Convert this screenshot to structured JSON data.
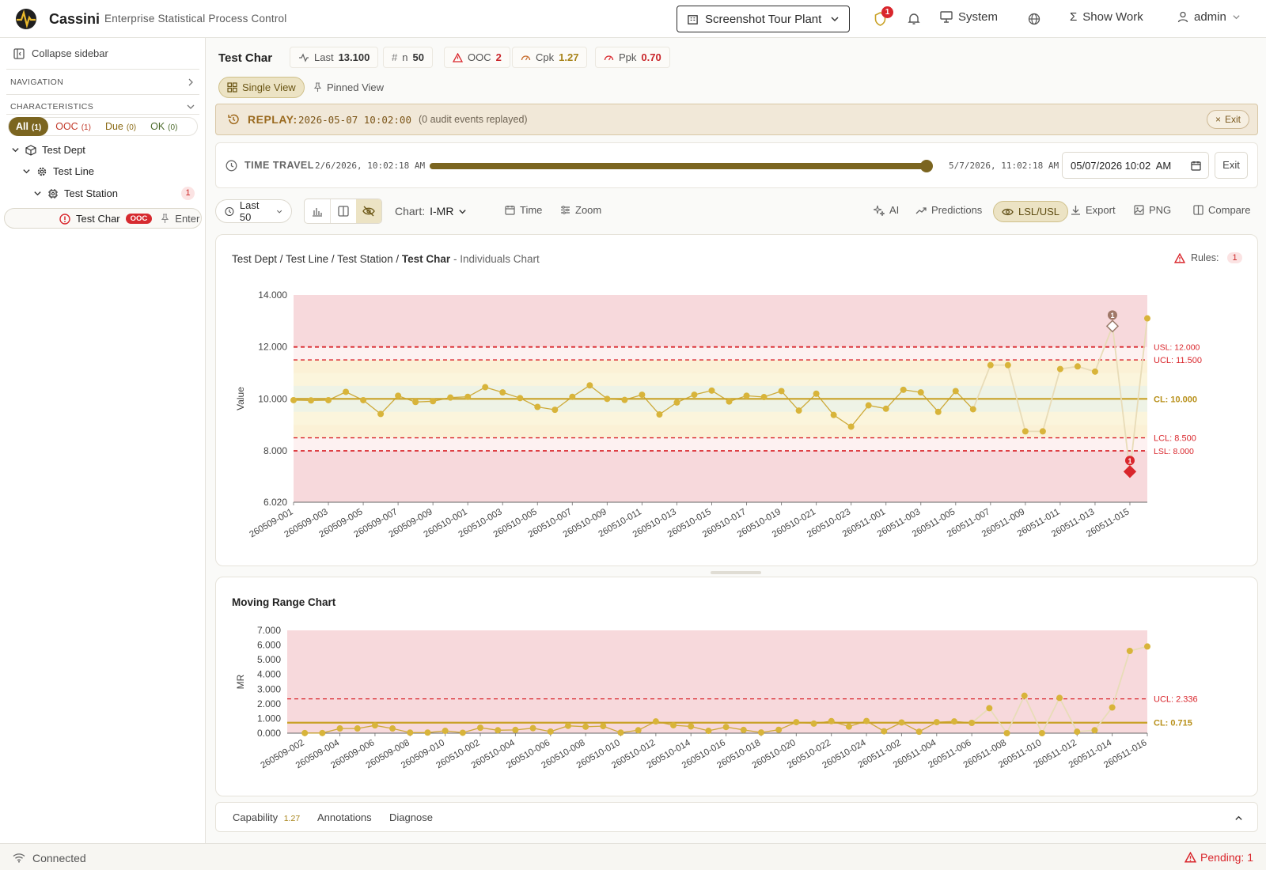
{
  "header": {
    "brand": "Cassini",
    "tagline": "Enterprise Statistical Process Control",
    "plant": "Screenshot Tour Plant",
    "alert_count": "1",
    "system_label": "System",
    "show_work_label": "Show Work",
    "user": "admin"
  },
  "sidebar": {
    "collapse_label": "Collapse sidebar",
    "navigation_label": "NAVIGATION",
    "characteristics_label": "CHARACTERISTICS",
    "filters": [
      {
        "label": "All",
        "count": "(1)"
      },
      {
        "label": "OOC",
        "count": "(1)"
      },
      {
        "label": "Due",
        "count": "(0)"
      },
      {
        "label": "OK",
        "count": "(0)"
      }
    ],
    "tree": [
      {
        "label": "Test Dept"
      },
      {
        "label": "Test Line"
      },
      {
        "label": "Test Station",
        "count": "1"
      },
      {
        "label": "Test Char",
        "badge": "OOC",
        "action": "Enter"
      }
    ]
  },
  "stats": {
    "title": "Test Char",
    "last_label": "Last",
    "last_value": "13.100",
    "n_label": "n",
    "n_value": "50",
    "ooc_label": "OOC",
    "ooc_value": "2",
    "cpk_label": "Cpk",
    "cpk_value": "1.27",
    "ppk_label": "Ppk",
    "ppk_value": "0.70"
  },
  "views": {
    "single": "Single View",
    "pinned": "Pinned View"
  },
  "replay": {
    "label": "REPLAY:",
    "timestamp": "2026-05-07 10:02:00",
    "note": "(0 audit events replayed)",
    "exit": "Exit"
  },
  "time_travel": {
    "label": "TIME TRAVEL",
    "start": "2/6/2026, 10:02:18 AM",
    "end": "5/7/2026, 11:02:18 AM",
    "position": 1.0,
    "input_value": "05/07/2026 10:02  AM",
    "exit": "Exit"
  },
  "toolbar": {
    "range": "Last 50",
    "chart_label": "Chart:",
    "chart_type": "I-MR",
    "time": "Time",
    "zoom": "Zoom",
    "ai": "AI",
    "predictions": "Predictions",
    "lsl_usl": "LSL/USL",
    "export": "Export",
    "png": "PNG",
    "compare": "Compare"
  },
  "colors": {
    "accent": "#7b6520",
    "point": "#d8b43a",
    "line": "#c9a227",
    "danger": "#d9262c",
    "zone_red": "#f7d9dc",
    "zone_yellow": "#fbf5dc",
    "zone_green": "#eef3e6"
  },
  "individuals": {
    "path": {
      "a": "Test Dept",
      "b": "Test Line",
      "c": "Test Station",
      "d": "Test Char",
      "suffix": "- Individuals Chart"
    },
    "rules_label": "Rules:",
    "rules_count": "1",
    "ylabel": "Value"
  },
  "mr": {
    "title": "Moving Range Chart",
    "ylabel": "MR"
  },
  "chart_data": [
    {
      "type": "line",
      "title": "Individuals Chart",
      "ylabel": "Value",
      "ylim": [
        6.02,
        14.0
      ],
      "yticks": [
        "14.000",
        "12.000",
        "10.000",
        "8.000",
        "6.020"
      ],
      "xticks": [
        "260509-001",
        "260509-003",
        "260509-005",
        "260509-007",
        "260509-009",
        "260510-001",
        "260510-003",
        "260510-005",
        "260510-007",
        "260510-009",
        "260510-011",
        "260510-013",
        "260510-015",
        "260510-017",
        "260510-019",
        "260510-021",
        "260510-023",
        "260511-001",
        "260511-003",
        "260511-005",
        "260511-007",
        "260511-009",
        "260511-011",
        "260511-013",
        "260511-015"
      ],
      "values": [
        9.95,
        9.94,
        9.95,
        10.27,
        9.95,
        9.42,
        10.12,
        9.88,
        9.91,
        10.05,
        10.08,
        10.45,
        10.25,
        10.03,
        9.69,
        9.58,
        10.08,
        10.52,
        10.0,
        9.96,
        10.16,
        9.4,
        9.86,
        10.16,
        10.32,
        9.9,
        10.12,
        10.07,
        10.3,
        9.55,
        10.2,
        9.38,
        8.93,
        9.75,
        9.62,
        10.35,
        10.25,
        9.5,
        10.3,
        9.6,
        11.3,
        11.3,
        8.75,
        8.75,
        11.15,
        11.25,
        11.05,
        12.8,
        7.2,
        13.1
      ],
      "limits": [
        {
          "label": "USL: 12.000",
          "value": 12.0
        },
        {
          "label": "UCL: 11.500",
          "value": 11.5
        },
        {
          "label": "CL: 10.000",
          "value": 10.0
        },
        {
          "label": "LCL: 8.500",
          "value": 8.5
        },
        {
          "label": "LSL: 8.000",
          "value": 8.0
        }
      ],
      "violations": [
        {
          "index": 47,
          "marker": "1"
        },
        {
          "index": 48,
          "marker": "1"
        }
      ]
    },
    {
      "type": "line",
      "title": "Moving Range Chart",
      "ylabel": "MR",
      "ylim": [
        0,
        7.0
      ],
      "yticks": [
        "7.000",
        "6.000",
        "5.000",
        "4.000",
        "3.000",
        "2.000",
        "1.000",
        "0.000"
      ],
      "xticks": [
        "260509-002",
        "260509-004",
        "260509-006",
        "260509-008",
        "260509-010",
        "260510-002",
        "260510-004",
        "260510-006",
        "260510-008",
        "260510-010",
        "260510-012",
        "260510-014",
        "260510-016",
        "260510-018",
        "260510-020",
        "260510-022",
        "260510-024",
        "260511-002",
        "260511-004",
        "260511-006",
        "260511-008",
        "260511-010",
        "260511-012",
        "260511-014",
        "260511-016"
      ],
      "values": [
        0.01,
        0.01,
        0.32,
        0.32,
        0.53,
        0.32,
        0.04,
        0.04,
        0.16,
        0.03,
        0.37,
        0.2,
        0.22,
        0.34,
        0.11,
        0.5,
        0.44,
        0.48,
        0.04,
        0.2,
        0.8,
        0.54,
        0.46,
        0.16,
        0.42,
        0.22,
        0.05,
        0.23,
        0.75,
        0.65,
        0.82,
        0.45,
        0.83,
        0.13,
        0.73,
        0.1,
        0.75,
        0.8,
        0.7,
        1.7,
        0.0,
        2.55,
        0.0,
        2.4,
        0.1,
        0.2,
        1.75,
        5.6,
        5.9
      ],
      "limits": [
        {
          "label": "UCL: 2.336",
          "value": 2.336
        },
        {
          "label": "CL: 0.715",
          "value": 0.715
        }
      ]
    }
  ],
  "bottom_tabs": {
    "capability": "Capability",
    "capability_value": "1.27",
    "annotations": "Annotations",
    "diagnose": "Diagnose"
  },
  "status": {
    "connection": "Connected",
    "pending": "Pending: 1"
  }
}
